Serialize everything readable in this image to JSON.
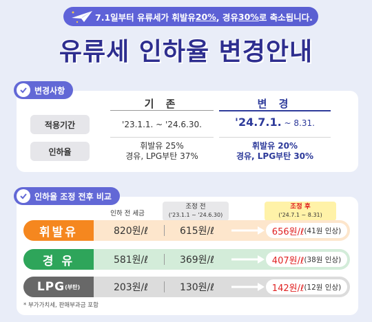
{
  "banner": {
    "part1": "7.1일부터 유류세가 휘발유 ",
    "u1": "20%",
    "part2": ", 경유 ",
    "u2": "30%",
    "part3": "로 축소됩니다."
  },
  "title": "유류세 인하율 변경안내",
  "section1": {
    "label": "변경사항",
    "col_before": "기 존",
    "col_after": "변 경",
    "rows": [
      {
        "label": "적용기간",
        "before": "'23.1.1. ~ '24.6.30.",
        "after_big": "'24.7.1.",
        "after_rest": " ~ 8.31."
      },
      {
        "label": "인하율",
        "before1": "휘발유 25%",
        "before2": "경유, LPG부탄 37%",
        "after1": "휘발유 20%",
        "after2": "경유, LPG부탄 30%"
      }
    ]
  },
  "section2": {
    "label": "인하율 조정 전후 비교",
    "col_prev": "인하 전 세금",
    "col_before_t": "조정 전",
    "col_before_s": "('23.1.1 ~ '24.6.30)",
    "col_after_t": "조정 후",
    "col_after_s": "('24.7.1 ~ 8.31)",
    "rows": [
      {
        "fuel": "휘발유",
        "prev": "820원/ℓ",
        "before": "615원/ℓ",
        "after": "656원/ℓ",
        "note": "(41원 인상)",
        "color": "#f5871f",
        "bg": "#fde6cc"
      },
      {
        "fuel": "경 유",
        "prev": "581원/ℓ",
        "before": "369원/ℓ",
        "after": "407원/ℓ",
        "note": "(38원 인상)",
        "color": "#2ea55a",
        "bg": "#d3ecd9"
      },
      {
        "fuel": "LPG",
        "fuel_small": "(부탄)",
        "prev": "203원/ℓ",
        "before": "130원/ℓ",
        "after": "142원/ℓ",
        "note": "(12원 인상)",
        "color": "#686868",
        "bg": "#dcdcdc"
      }
    ],
    "footnote": "* 부가가치세, 판매부과금 포함"
  }
}
